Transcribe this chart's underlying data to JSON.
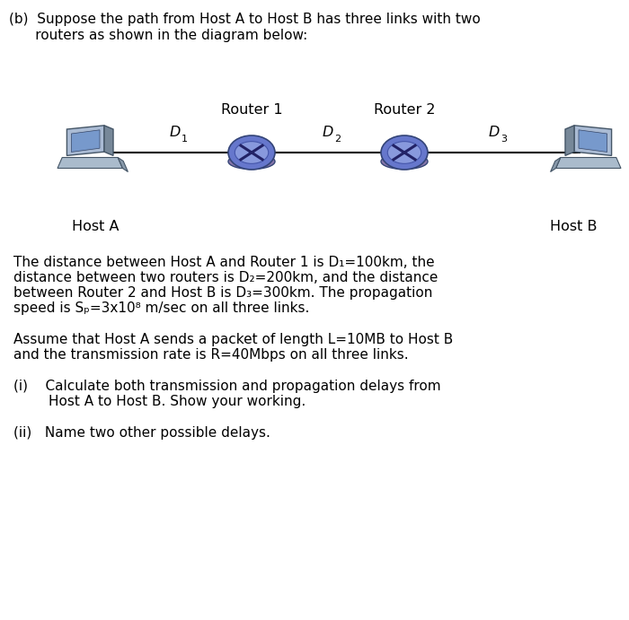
{
  "background_color": "#ffffff",
  "title_line1": "(b)  Suppose the path from Host A to Host B has three links with two",
  "title_line2": "      routers as shown in the diagram below:",
  "router1_label": "Router 1",
  "router2_label": "Router 2",
  "host_a_label": "Host A",
  "host_b_label": "Host B",
  "d1_label": "D",
  "d2_label": "D",
  "d3_label": "D",
  "paragraph1_lines": [
    "The distance between Host A and Router 1 is D₁=100km, the",
    "distance between two routers is D₂=200km, and the distance",
    "between Router 2 and Host B is D₃=300km. The propagation",
    "speed is Sₚ=3x10⁸ m/sec on all three links."
  ],
  "paragraph2_lines": [
    "Assume that Host A sends a packet of length L=10MB to Host B",
    "and the transmission rate is R=40Mbps on all three links."
  ],
  "item_i_lines": [
    "(i)    Calculate both transmission and propagation delays from",
    "        Host A to Host B. Show your working."
  ],
  "item_ii_line": "(ii)   Name two other possible delays.",
  "text_fontsize": 11.0,
  "label_fontsize": 11.5,
  "text_color": "#000000",
  "line_color": "#000000",
  "router_outer_color": "#6677cc",
  "router_inner_color": "#8899dd",
  "router_base_color": "#8877aa",
  "router_x_color": "#222266",
  "computer_body_color": "#8899bb",
  "computer_screen_color": "#99aad4",
  "computer_dark_color": "#445566"
}
